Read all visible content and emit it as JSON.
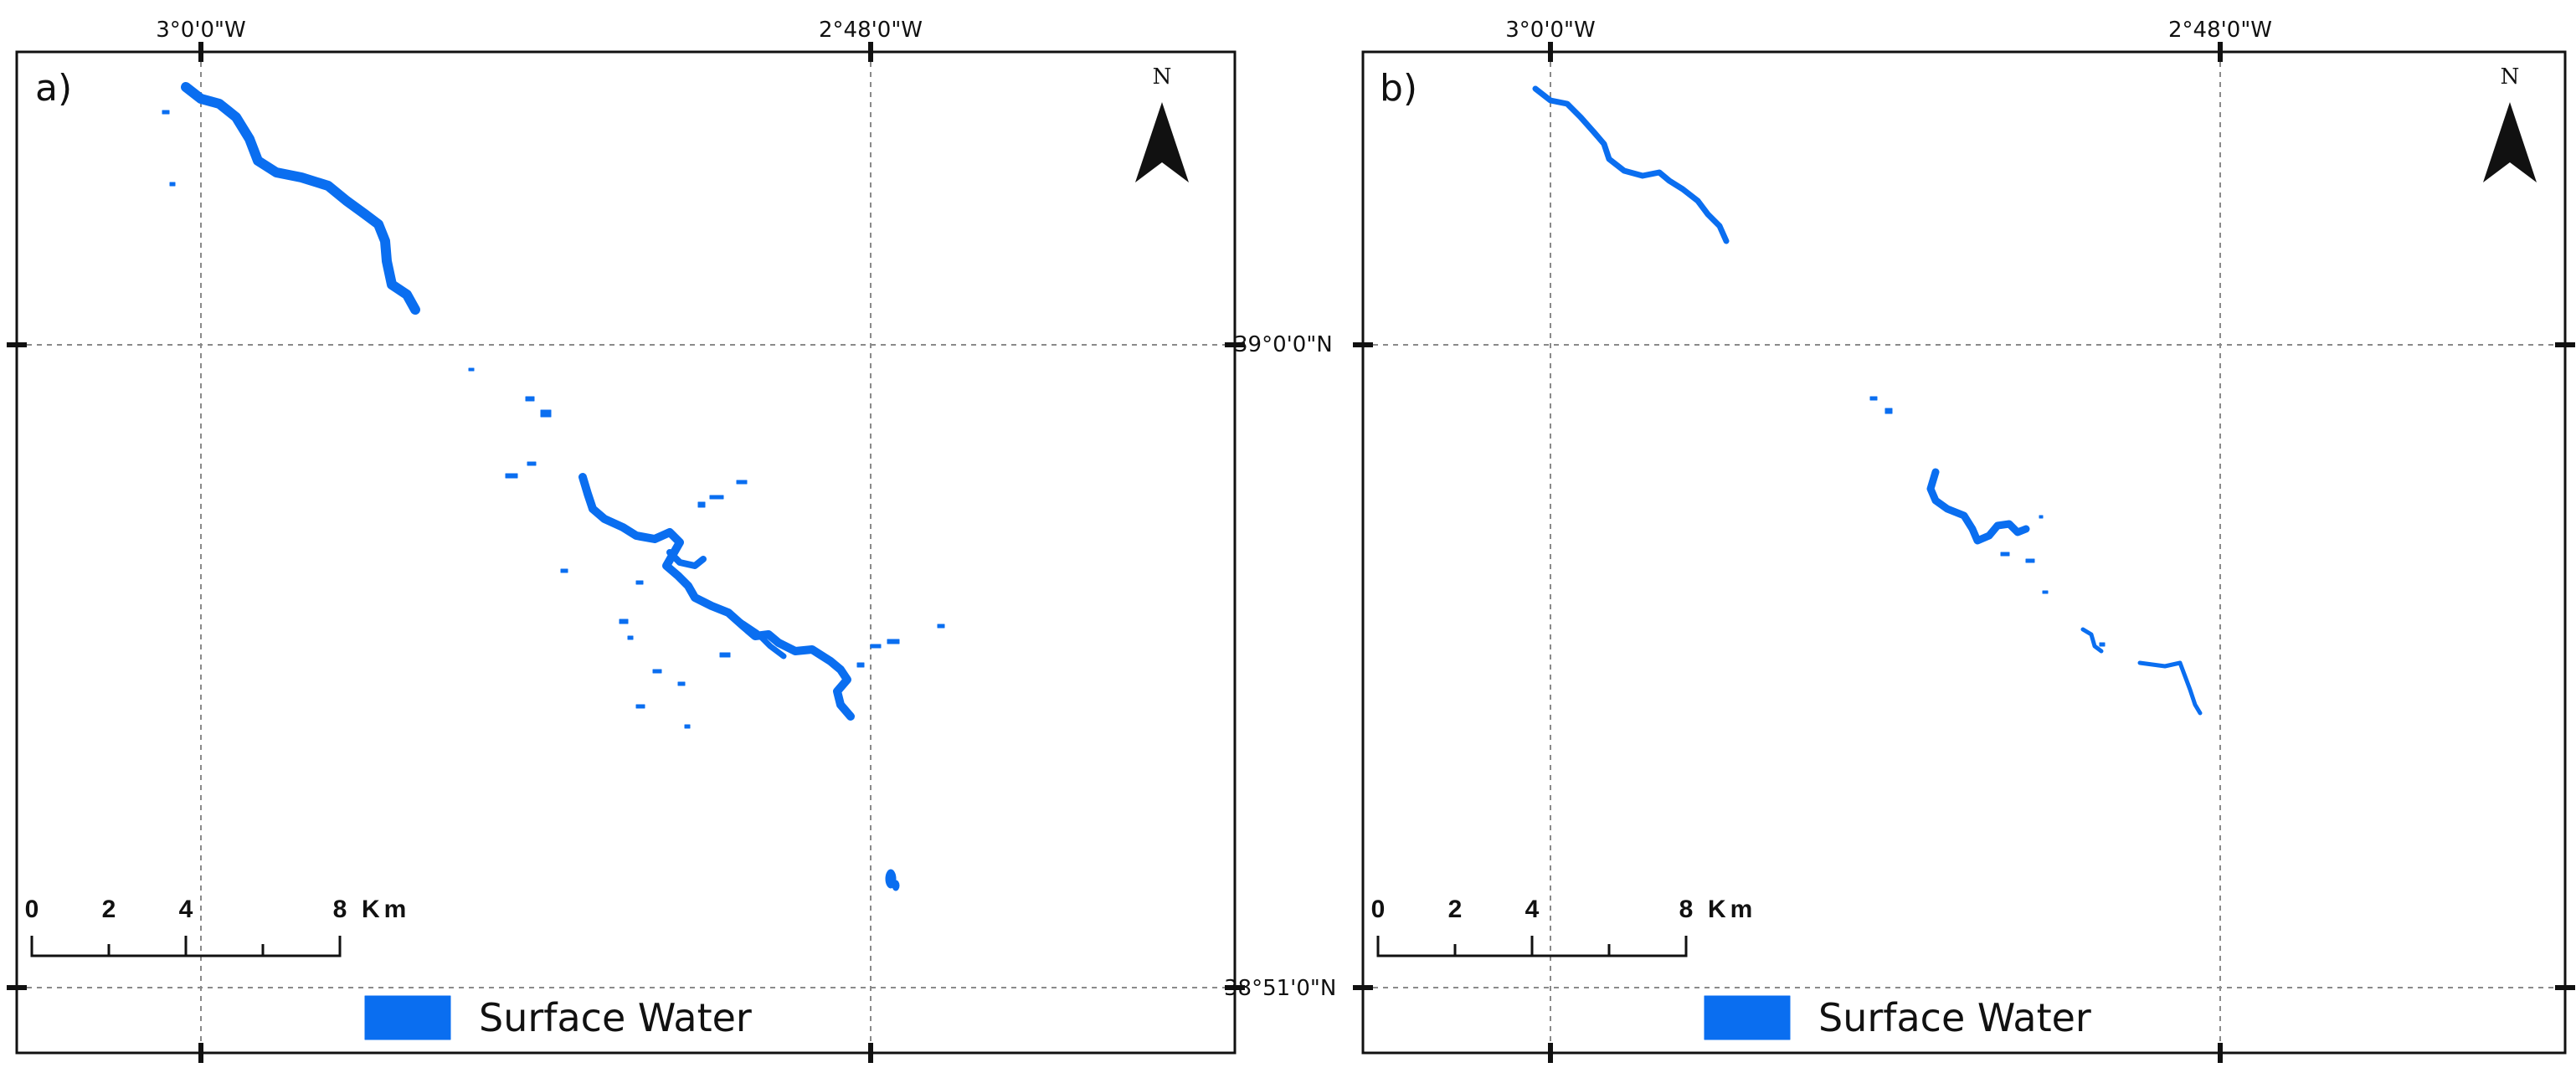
{
  "colors": {
    "water": "#0a6ef0",
    "frame": "#111111",
    "grid": "#8a8a8a"
  },
  "axes": {
    "lon_labels": [
      "3°0'0\"W",
      "2°48'0\"W"
    ],
    "lat_labels": [
      "39°0'0\"N",
      "38°51'0\"N"
    ]
  },
  "north_arrow": {
    "label": "N",
    "icon": "north-arrow-icon"
  },
  "scale_bar": {
    "labels": [
      "0",
      "2",
      "4",
      "8"
    ],
    "unit": "Km"
  },
  "legend": {
    "label": "Surface Water",
    "icon": "water-swatch-icon"
  },
  "panels": [
    {
      "id": "a",
      "label": "a)"
    },
    {
      "id": "b",
      "label": "b)"
    }
  ]
}
